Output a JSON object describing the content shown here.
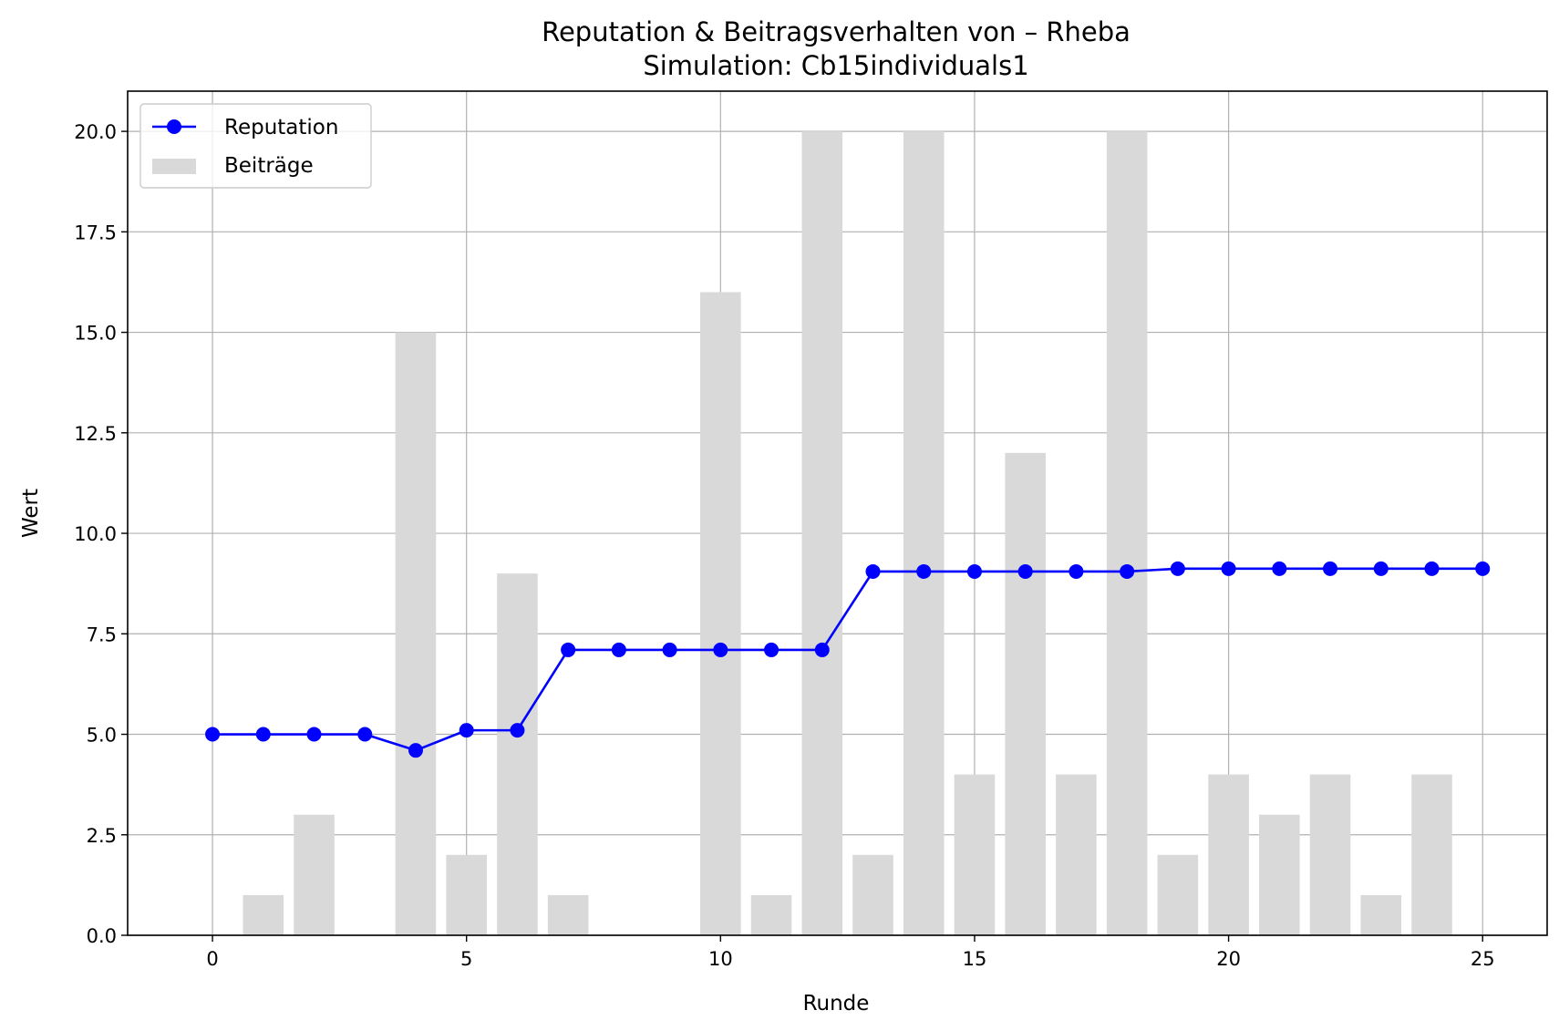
{
  "chart_data": {
    "type": "bar+line",
    "title": "Reputation & Beitragsverhalten von – Rheba",
    "subtitle": "Simulation: Cb15individuals1",
    "xlabel": "Runde",
    "ylabel": "Wert",
    "xlim": [
      -1.67,
      26.27
    ],
    "ylim": [
      0,
      21
    ],
    "x_ticks": [
      0,
      5,
      10,
      15,
      20,
      25
    ],
    "x_tick_labels": [
      "0",
      "5",
      "10",
      "15",
      "20",
      "25"
    ],
    "y_ticks": [
      0,
      2.5,
      5,
      7.5,
      10,
      12.5,
      15,
      17.5,
      20
    ],
    "y_tick_labels": [
      "0.0",
      "2.5",
      "5.0",
      "7.5",
      "10.0",
      "12.5",
      "15.0",
      "17.5",
      "20.0"
    ],
    "grid": true,
    "legend_position": "upper-left",
    "bar_series": {
      "name": "Beiträge",
      "color": "#d9d9d9",
      "x": [
        0,
        1,
        2,
        3,
        4,
        5,
        6,
        7,
        8,
        9,
        10,
        11,
        12,
        13,
        14,
        15,
        16,
        17,
        18,
        19,
        20,
        21,
        22,
        23,
        24
      ],
      "values": [
        0,
        1,
        3,
        0,
        15,
        2,
        9,
        1,
        0,
        0,
        16,
        1,
        20,
        2,
        20,
        4,
        12,
        4,
        20,
        2,
        4,
        3,
        4,
        1,
        4
      ]
    },
    "line_series": {
      "name": "Reputation",
      "color": "#0000ff",
      "x": [
        0,
        1,
        2,
        3,
        4,
        5,
        6,
        7,
        8,
        9,
        10,
        11,
        12,
        13,
        14,
        15,
        16,
        17,
        18,
        19,
        20,
        21,
        22,
        23,
        24,
        25
      ],
      "values": [
        5.0,
        5.0,
        5.0,
        5.0,
        4.6,
        5.1,
        5.1,
        7.1,
        7.1,
        7.1,
        7.1,
        7.1,
        7.1,
        9.05,
        9.05,
        9.05,
        9.05,
        9.05,
        9.05,
        9.12,
        9.12,
        9.12,
        9.12,
        9.12,
        9.12,
        9.12
      ]
    }
  }
}
